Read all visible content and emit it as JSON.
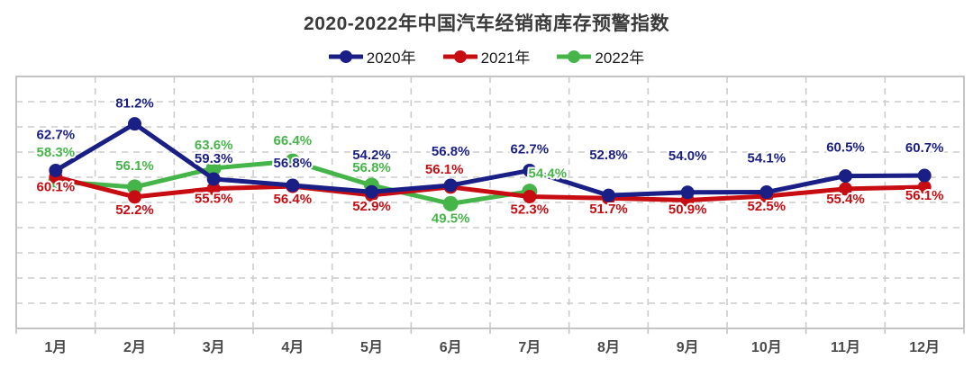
{
  "chart_data": {
    "type": "line",
    "title": "2020-2022年中国汽车经销商库存预警指数",
    "categories": [
      "1月",
      "2月",
      "3月",
      "4月",
      "5月",
      "6月",
      "7月",
      "8月",
      "9月",
      "10月",
      "11月",
      "12月"
    ],
    "series": [
      {
        "name": "2020年",
        "color": "#1A1F86",
        "values": [
          62.7,
          81.2,
          59.3,
          56.8,
          54.2,
          56.8,
          62.7,
          52.8,
          54.0,
          54.1,
          60.5,
          60.7
        ],
        "labels": [
          "62.7%",
          "81.2%",
          "59.3%",
          "56.8%",
          "54.2%",
          "56.8%",
          "62.7%",
          "52.8%",
          "54.0%",
          "54.1%",
          "60.5%",
          "60.7%"
        ]
      },
      {
        "name": "2021年",
        "color": "#C70D12",
        "values": [
          60.1,
          52.2,
          55.5,
          56.4,
          52.9,
          56.1,
          52.3,
          51.7,
          50.9,
          52.5,
          55.4,
          56.1
        ],
        "labels": [
          "60.1%",
          "52.2%",
          "55.5%",
          "56.4%",
          "52.9%",
          "56.1%",
          "52.3%",
          "51.7%",
          "50.9%",
          "52.5%",
          "55.4%",
          "56.1%"
        ]
      },
      {
        "name": "2022年",
        "color": "#46B549",
        "values": [
          58.3,
          56.1,
          63.6,
          66.4,
          56.8,
          49.5,
          54.4
        ],
        "labels": [
          "58.3%",
          "56.1%",
          "63.6%",
          "66.4%",
          "56.8%",
          "49.5%",
          "54.4%"
        ]
      }
    ],
    "ylim": [
      0,
      100
    ],
    "y_gridline_step": 10,
    "grid": true,
    "legend_position": "top",
    "label_offsets": [
      {
        "dx": [
          0,
          0,
          0,
          0,
          0,
          0,
          0,
          0,
          0,
          0,
          0,
          0
        ],
        "dy": [
          -35,
          -18,
          -18,
          -20,
          -36,
          -33,
          -19,
          -40,
          -36,
          -33,
          -27,
          -26
        ]
      },
      {
        "dx": [
          0,
          0,
          0,
          0,
          0,
          -7,
          0,
          0,
          0,
          0,
          0,
          0
        ],
        "dy": [
          16,
          19,
          16,
          19,
          17,
          -15,
          19,
          17,
          15,
          16,
          16,
          14
        ]
      },
      {
        "dx": [
          0,
          0,
          0,
          0,
          0,
          0,
          20
        ],
        "dy": [
          -28,
          -19,
          -21,
          -18,
          -15,
          21,
          -15
        ]
      }
    ],
    "colors": {
      "grid": "#CCCCCC",
      "plot_border": "#C4C4C4",
      "title_text": "#3A3A3A",
      "axis_label_text": "#4A4A4A"
    }
  }
}
